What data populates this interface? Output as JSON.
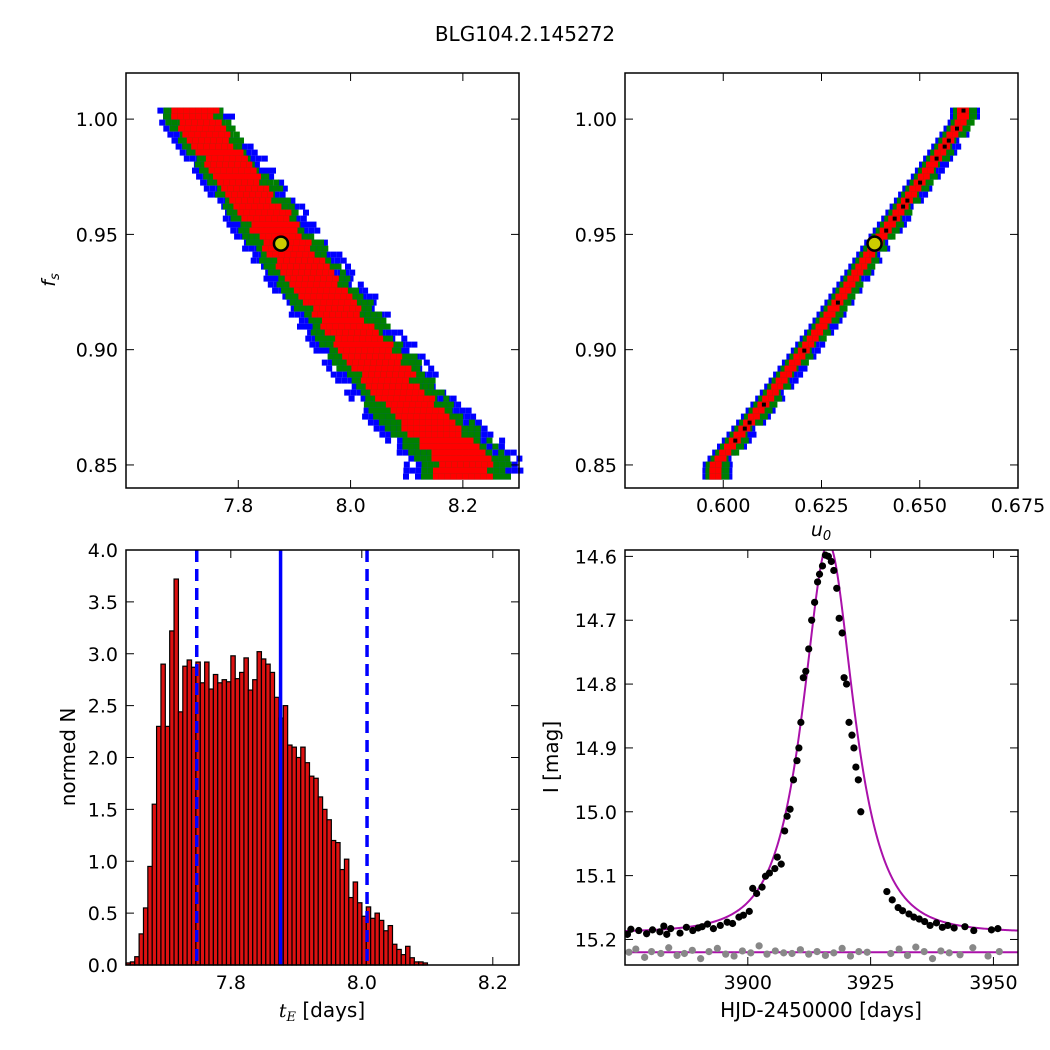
{
  "title": "BLG104.2.145272",
  "colors": {
    "level1": "#ff0000",
    "level2": "#008000",
    "level3": "#0000ff",
    "hist_bar": "#dd1111",
    "median_line": "#0000ff",
    "model_line": "#aa11aa",
    "data_points": "#000000",
    "residual_points": "#888888",
    "best_fit_marker": "#cccc00"
  },
  "chart_data": [
    {
      "type": "heatmap",
      "panel": "top-left",
      "xlabel": "",
      "ylabel": "f_s",
      "xlim": [
        7.6,
        8.3
      ],
      "ylim": [
        0.84,
        1.02
      ],
      "xticks": [
        "7.8",
        "8.0",
        "8.2"
      ],
      "yticks": [
        "0.85",
        "0.90",
        "0.95",
        "1.00"
      ],
      "levels": [
        "red",
        "green",
        "blue"
      ],
      "ridge": {
        "x": [
          7.72,
          7.8,
          7.88,
          7.96,
          8.04,
          8.12,
          8.2
        ],
        "y": [
          1.0,
          0.974,
          0.946,
          0.921,
          0.895,
          0.871,
          0.852
        ]
      },
      "best_fit": {
        "x": 7.876,
        "y": 0.946
      }
    },
    {
      "type": "heatmap",
      "panel": "top-right",
      "xlabel": "u_0",
      "ylabel": "",
      "xlim": [
        0.575,
        0.675
      ],
      "ylim": [
        0.84,
        1.02
      ],
      "xticks": [
        "0.600",
        "0.625",
        "0.650",
        "0.675"
      ],
      "yticks": [
        "0.85",
        "0.90",
        "0.95",
        "1.00"
      ],
      "levels": [
        "red",
        "green",
        "blue"
      ],
      "ridge": {
        "x": [
          0.598,
          0.612,
          0.625,
          0.639,
          0.651,
          0.661
        ],
        "y": [
          0.85,
          0.88,
          0.91,
          0.946,
          0.975,
          1.0
        ]
      },
      "best_fit": {
        "x": 0.6385,
        "y": 0.946
      }
    },
    {
      "type": "bar",
      "panel": "bottom-left",
      "xlabel": "t_E [days]",
      "ylabel": "normed N",
      "xlim": [
        7.64,
        8.24
      ],
      "ylim": [
        0,
        4.0
      ],
      "xticks": [
        "7.8",
        "8.0",
        "8.2"
      ],
      "yticks": [
        "0.0",
        "0.5",
        "1.0",
        "1.5",
        "2.0",
        "2.5",
        "3.0",
        "3.5",
        "4.0"
      ],
      "bin_start": 7.64,
      "bin_width": 0.00667,
      "values": [
        0.02,
        0.03,
        0.08,
        0.3,
        0.55,
        0.95,
        1.55,
        2.3,
        2.9,
        2.3,
        3.22,
        3.72,
        2.44,
        2.88,
        2.94,
        2.87,
        2.92,
        2.72,
        2.92,
        2.66,
        2.8,
        2.72,
        2.75,
        2.73,
        2.98,
        2.76,
        2.82,
        2.96,
        2.65,
        2.75,
        3.02,
        2.95,
        2.9,
        2.82,
        2.58,
        2.38,
        2.5,
        2.12,
        2.1,
        2.0,
        2.1,
        1.95,
        1.82,
        1.8,
        1.62,
        1.5,
        1.4,
        1.2,
        1.18,
        0.92,
        1.02,
        0.65,
        0.8,
        0.6,
        0.47,
        0.56,
        0.45,
        0.5,
        0.43,
        0.33,
        0.38,
        0.2,
        0.15,
        0.1,
        0.18,
        0.07,
        0.03,
        0.03,
        0.02
      ],
      "vlines": [
        {
          "x": 7.748,
          "style": "dashed"
        },
        {
          "x": 7.876,
          "style": "solid"
        },
        {
          "x": 8.008,
          "style": "dashed"
        }
      ]
    },
    {
      "type": "scatter",
      "panel": "bottom-right",
      "xlabel": "HJD-2450000 [days]",
      "ylabel": "I [mag]",
      "xlim": [
        3875,
        3955
      ],
      "ylim": [
        15.24,
        14.59
      ],
      "y_inverted": true,
      "xticks": [
        "3900",
        "3925",
        "3950"
      ],
      "yticks": [
        "14.6",
        "14.7",
        "14.8",
        "14.9",
        "15.0",
        "15.1",
        "15.2"
      ],
      "model": {
        "t0": 3916.4,
        "tE": 7.876,
        "u0": 0.6385,
        "fs": 0.946,
        "baseline": 15.189
      },
      "residual_baseline": 15.22,
      "observed": {
        "x": [
          3875.5,
          3876.2,
          3877.8,
          3879.4,
          3880.6,
          3882.1,
          3882.9,
          3883.5,
          3884.3,
          3886.2,
          3887.5,
          3888.8,
          3889.9,
          3890.7,
          3891.8,
          3893.0,
          3894.4,
          3895.8,
          3896.9,
          3898.2,
          3899.1,
          3900.3,
          3901.0,
          3901.8,
          3902.9,
          3903.6,
          3904.4,
          3905.5,
          3906.0,
          3906.8,
          3907.5,
          3908.0,
          3908.6,
          3909.3,
          3910.0,
          3910.4,
          3910.8,
          3911.3,
          3911.8,
          3912.4,
          3913.0,
          3913.6,
          3914.2,
          3914.6,
          3915.2,
          3915.8,
          3916.4,
          3917.0,
          3917.5,
          3918.1,
          3918.6,
          3919.2,
          3919.6,
          3920.1,
          3920.6,
          3921.2,
          3921.6,
          3922.0,
          3922.5,
          3923.0,
          3928.3,
          3929.4,
          3930.6,
          3931.5,
          3932.8,
          3933.8,
          3934.9,
          3936.0,
          3937.1,
          3938.4,
          3939.6,
          3940.7,
          3942.0,
          3944.2,
          3946.0,
          3949.6,
          3950.9
        ],
        "y": [
          15.192,
          15.184,
          15.186,
          15.191,
          15.185,
          15.188,
          15.179,
          15.192,
          15.183,
          15.19,
          15.181,
          15.186,
          15.182,
          15.18,
          15.176,
          15.183,
          15.178,
          15.173,
          15.175,
          15.165,
          15.162,
          15.156,
          15.12,
          15.128,
          15.118,
          15.101,
          15.096,
          15.089,
          15.071,
          15.082,
          15.03,
          15.007,
          14.996,
          14.95,
          14.92,
          14.9,
          14.86,
          14.79,
          14.78,
          14.745,
          14.7,
          14.672,
          14.64,
          14.628,
          14.615,
          14.598,
          14.6,
          14.608,
          14.622,
          14.65,
          14.697,
          14.72,
          14.79,
          14.8,
          14.86,
          14.88,
          14.9,
          14.93,
          14.95,
          15.0,
          15.125,
          15.138,
          15.15,
          15.155,
          15.16,
          15.165,
          15.168,
          15.172,
          15.178,
          15.174,
          15.181,
          15.178,
          15.182,
          15.18,
          15.186,
          15.185,
          15.183
        ]
      },
      "residuals": {
        "x": [
          3875.8,
          3877.2,
          3879.0,
          3880.4,
          3882.3,
          3883.9,
          3885.6,
          3887.1,
          3888.7,
          3890.4,
          3892.1,
          3893.8,
          3895.5,
          3897.2,
          3898.9,
          3900.6,
          3902.3,
          3903.9,
          3905.6,
          3907.3,
          3909.0,
          3910.7,
          3912.4,
          3914.1,
          3915.8,
          3917.5,
          3919.2,
          3920.9,
          3922.6,
          3924.3,
          3929.1,
          3930.8,
          3932.5,
          3934.2,
          3935.9,
          3937.6,
          3939.3,
          3941.0,
          3943.2,
          3945.8,
          3948.9,
          3951.2
        ],
        "y": [
          15.22,
          15.215,
          15.228,
          15.219,
          15.222,
          15.213,
          15.225,
          15.222,
          15.217,
          15.23,
          15.219,
          15.214,
          15.223,
          15.226,
          15.218,
          15.221,
          15.21,
          15.223,
          15.218,
          15.221,
          15.222,
          15.216,
          15.223,
          15.219,
          15.225,
          15.221,
          15.214,
          15.226,
          15.219,
          15.22,
          15.222,
          15.215,
          15.225,
          15.212,
          15.219,
          15.23,
          15.218,
          15.221,
          15.224,
          15.213,
          15.226,
          15.219
        ]
      }
    }
  ]
}
